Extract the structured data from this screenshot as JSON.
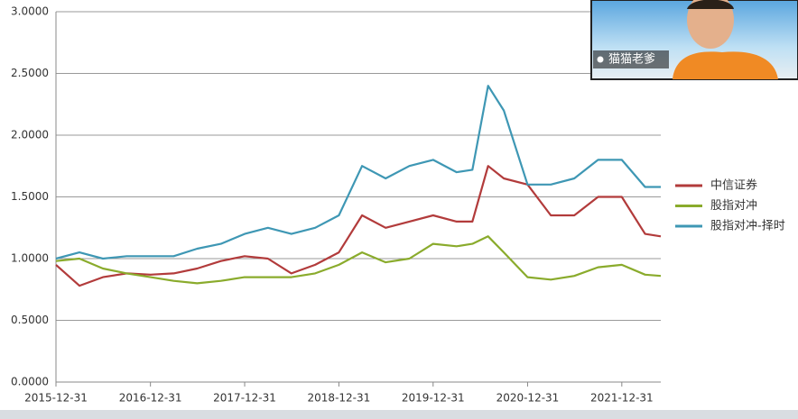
{
  "chart_data": {
    "type": "line",
    "x": [
      "2015-12-31",
      "2016-03-31",
      "2016-06-30",
      "2016-09-30",
      "2016-12-31",
      "2017-03-31",
      "2017-06-30",
      "2017-09-30",
      "2017-12-31",
      "2018-03-31",
      "2018-06-30",
      "2018-09-30",
      "2018-12-31",
      "2019-03-31",
      "2019-06-30",
      "2019-09-30",
      "2019-12-31",
      "2020-03-31",
      "2020-05-31",
      "2020-07-31",
      "2020-09-30",
      "2020-12-31",
      "2021-03-31",
      "2021-06-30",
      "2021-09-30",
      "2021-12-31",
      "2022-03-31",
      "2022-05-31"
    ],
    "series": [
      {
        "name": "中信证券",
        "color": "#b23b3b",
        "values": [
          0.95,
          0.78,
          0.85,
          0.88,
          0.87,
          0.88,
          0.92,
          0.98,
          1.02,
          1.0,
          0.88,
          0.95,
          1.05,
          1.35,
          1.25,
          1.3,
          1.35,
          1.3,
          1.3,
          1.75,
          1.65,
          1.6,
          1.35,
          1.35,
          1.5,
          1.5,
          1.2,
          1.18
        ]
      },
      {
        "name": "股指对冲",
        "color": "#8aab2c",
        "values": [
          0.98,
          1.0,
          0.92,
          0.88,
          0.85,
          0.82,
          0.8,
          0.82,
          0.85,
          0.85,
          0.85,
          0.88,
          0.95,
          1.05,
          0.97,
          1.0,
          1.12,
          1.1,
          1.12,
          1.18,
          1.05,
          0.85,
          0.83,
          0.86,
          0.93,
          0.95,
          0.87,
          0.86
        ]
      },
      {
        "name": "股指对冲-择时",
        "color": "#3e97b4",
        "values": [
          1.0,
          1.05,
          1.0,
          1.02,
          1.02,
          1.02,
          1.08,
          1.12,
          1.2,
          1.25,
          1.2,
          1.25,
          1.35,
          1.75,
          1.65,
          1.75,
          1.8,
          1.7,
          1.72,
          2.4,
          2.2,
          1.6,
          1.6,
          1.65,
          1.8,
          1.8,
          1.58,
          1.58
        ]
      }
    ],
    "xlim": [
      "2015-12-31",
      "2022-05-31"
    ],
    "xticks": [
      "2015-12-31",
      "2016-12-31",
      "2017-12-31",
      "2018-12-31",
      "2019-12-31",
      "2020-12-31",
      "2021-12-31"
    ],
    "ylim": [
      0,
      3
    ],
    "yticks": [
      {
        "value": 0,
        "label": "0.0000"
      },
      {
        "value": 0.5,
        "label": "0.5000"
      },
      {
        "value": 1,
        "label": "1.0000"
      },
      {
        "value": 1.5,
        "label": "1.5000"
      },
      {
        "value": 2,
        "label": "2.0000"
      },
      {
        "value": 2.5,
        "label": "2.5000"
      },
      {
        "value": 3,
        "label": "3.0000"
      }
    ],
    "grid": true,
    "legend": "right"
  },
  "overlay": {
    "label": "猫猫老爹"
  }
}
